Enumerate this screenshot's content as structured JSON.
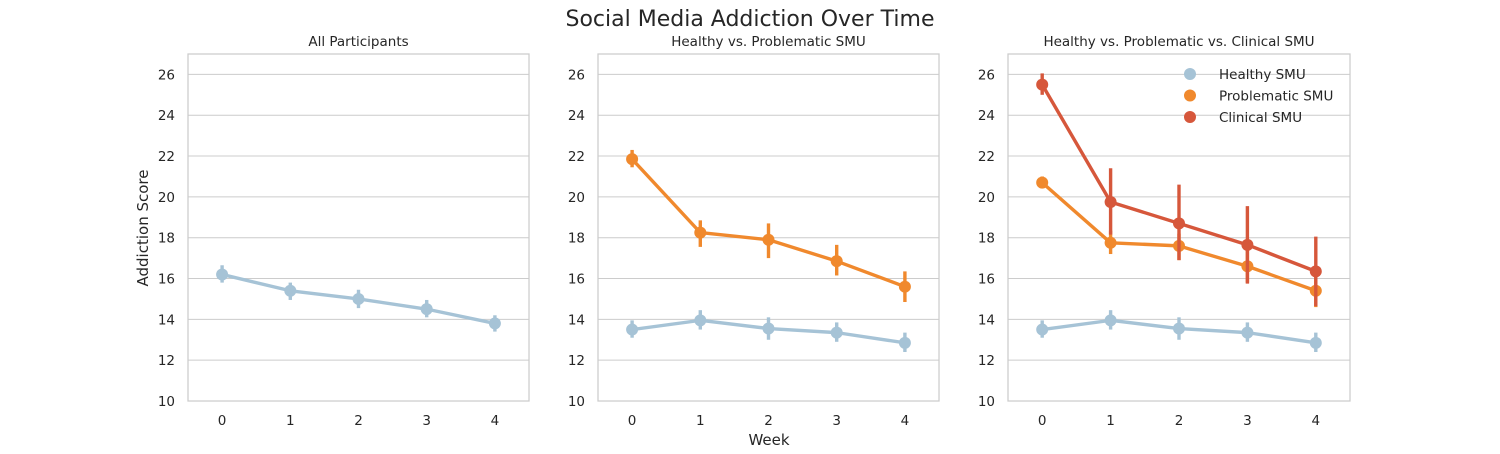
{
  "figure": {
    "suptitle": "Social Media Addiction Over Time",
    "xlabel": "Week",
    "ylabel": "Addiction Score"
  },
  "chart_data": [
    {
      "type": "line",
      "title": "All Participants",
      "xlabel": "",
      "ylabel": "Addiction Score",
      "categories": [
        "0",
        "1",
        "2",
        "3",
        "4"
      ],
      "ylim": [
        10,
        27
      ],
      "yticks": [
        10,
        12,
        14,
        16,
        18,
        20,
        22,
        24,
        26
      ],
      "grid": "horizontal",
      "legend": null,
      "series": [
        {
          "color": "#a6c3d6",
          "values": [
            16.2,
            15.4,
            15.0,
            14.5,
            13.8
          ],
          "err_low": [
            15.8,
            14.95,
            14.55,
            14.1,
            13.4
          ],
          "err_high": [
            16.65,
            15.8,
            15.45,
            14.95,
            14.2
          ]
        }
      ]
    },
    {
      "type": "line",
      "title": "Healthy vs. Problematic SMU",
      "xlabel": "Week",
      "ylabel": "",
      "categories": [
        "0",
        "1",
        "2",
        "3",
        "4"
      ],
      "ylim": [
        10,
        27
      ],
      "yticks": [
        10,
        12,
        14,
        16,
        18,
        20,
        22,
        24,
        26
      ],
      "grid": "horizontal",
      "legend": null,
      "series": [
        {
          "color": "#a6c3d6",
          "values": [
            13.5,
            13.95,
            13.55,
            13.35,
            12.85
          ],
          "err_low": [
            13.1,
            13.5,
            13.0,
            12.9,
            12.4
          ],
          "err_high": [
            13.95,
            14.45,
            14.1,
            13.85,
            13.35
          ]
        },
        {
          "color": "#f0892d",
          "values": [
            21.85,
            18.25,
            17.9,
            16.85,
            15.6
          ],
          "err_low": [
            21.45,
            17.55,
            17.0,
            16.15,
            14.85
          ],
          "err_high": [
            22.3,
            18.85,
            18.7,
            17.65,
            16.35
          ]
        }
      ]
    },
    {
      "type": "line",
      "title": "Healthy vs. Problematic vs. Clinical SMU",
      "xlabel": "",
      "ylabel": "",
      "categories": [
        "0",
        "1",
        "2",
        "3",
        "4"
      ],
      "ylim": [
        10,
        27
      ],
      "yticks": [
        10,
        12,
        14,
        16,
        18,
        20,
        22,
        24,
        26
      ],
      "grid": "horizontal",
      "legend": "top-right",
      "series": [
        {
          "name": "Healthy SMU",
          "color": "#a6c3d6",
          "values": [
            13.5,
            13.95,
            13.55,
            13.35,
            12.85
          ],
          "err_low": [
            13.1,
            13.5,
            13.0,
            12.9,
            12.4
          ],
          "err_high": [
            13.95,
            14.45,
            14.1,
            13.85,
            13.35
          ]
        },
        {
          "name": "Problematic SMU",
          "color": "#f0892d",
          "values": [
            20.7,
            17.75,
            17.6,
            16.6,
            15.4
          ],
          "err_low": [
            20.45,
            17.2,
            16.9,
            15.8,
            14.6
          ],
          "err_high": [
            21.0,
            18.35,
            18.2,
            17.45,
            16.1
          ]
        },
        {
          "name": "Clinical SMU",
          "color": "#d6573b",
          "values": [
            25.5,
            19.75,
            18.7,
            17.65,
            16.35
          ],
          "err_low": [
            25.0,
            18.15,
            16.9,
            15.75,
            14.65
          ],
          "err_high": [
            26.05,
            21.4,
            20.6,
            19.55,
            18.05
          ]
        }
      ]
    }
  ]
}
